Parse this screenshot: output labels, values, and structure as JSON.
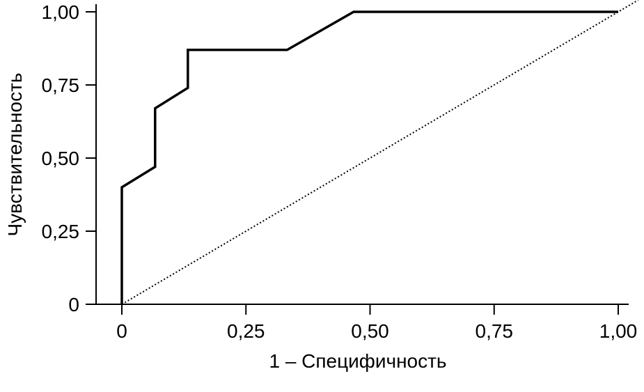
{
  "chart_data": {
    "type": "line",
    "title": "",
    "xlabel": "1 – Специфичность",
    "ylabel": "Чувствительность",
    "xlim": [
      0,
      1
    ],
    "ylim": [
      0,
      1
    ],
    "grid": false,
    "x_ticks": [
      0,
      0.25,
      0.5,
      0.75,
      1.0
    ],
    "x_tick_labels": [
      "0",
      "0,25",
      "0,50",
      "0,75",
      "1,00"
    ],
    "y_ticks": [
      0,
      0.25,
      0.5,
      0.75,
      1.0
    ],
    "y_tick_labels": [
      "0",
      "0,25",
      "0,50",
      "0,75",
      "1,00"
    ],
    "series": [
      {
        "style": "solid",
        "color": "#000000",
        "points": [
          [
            0,
            0
          ],
          [
            0,
            0.4
          ],
          [
            0.067,
            0.47
          ],
          [
            0.067,
            0.67
          ],
          [
            0.133,
            0.74
          ],
          [
            0.133,
            0.87
          ],
          [
            0.333,
            0.87
          ],
          [
            0.467,
            1.0
          ],
          [
            1.0,
            1.0
          ]
        ]
      },
      {
        "style": "dotted",
        "color": "#000000",
        "points": [
          [
            0,
            0
          ],
          [
            1.04,
            1.04
          ]
        ]
      }
    ]
  }
}
